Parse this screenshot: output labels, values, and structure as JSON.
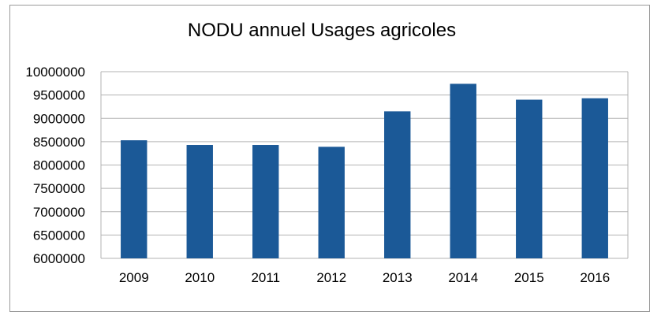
{
  "chart_data": {
    "type": "bar",
    "title": "NODU annuel Usages agricoles",
    "xlabel": "",
    "ylabel": "",
    "categories": [
      "2009",
      "2010",
      "2011",
      "2012",
      "2013",
      "2014",
      "2015",
      "2016"
    ],
    "values": [
      8530000,
      8430000,
      8430000,
      8390000,
      9150000,
      9740000,
      9400000,
      9430000
    ],
    "ylim": [
      6000000,
      10000000
    ],
    "yticks": [
      6000000,
      6500000,
      7000000,
      7500000,
      8000000,
      8500000,
      9000000,
      9500000,
      10000000
    ],
    "ytick_labels": [
      "6000000",
      "6500000",
      "7000000",
      "7500000",
      "8000000",
      "8500000",
      "9000000",
      "9500000",
      "10000000"
    ],
    "grid": true,
    "legend": "none",
    "bar_color": "#1b5997",
    "grid_color": "#b3b3b3"
  }
}
